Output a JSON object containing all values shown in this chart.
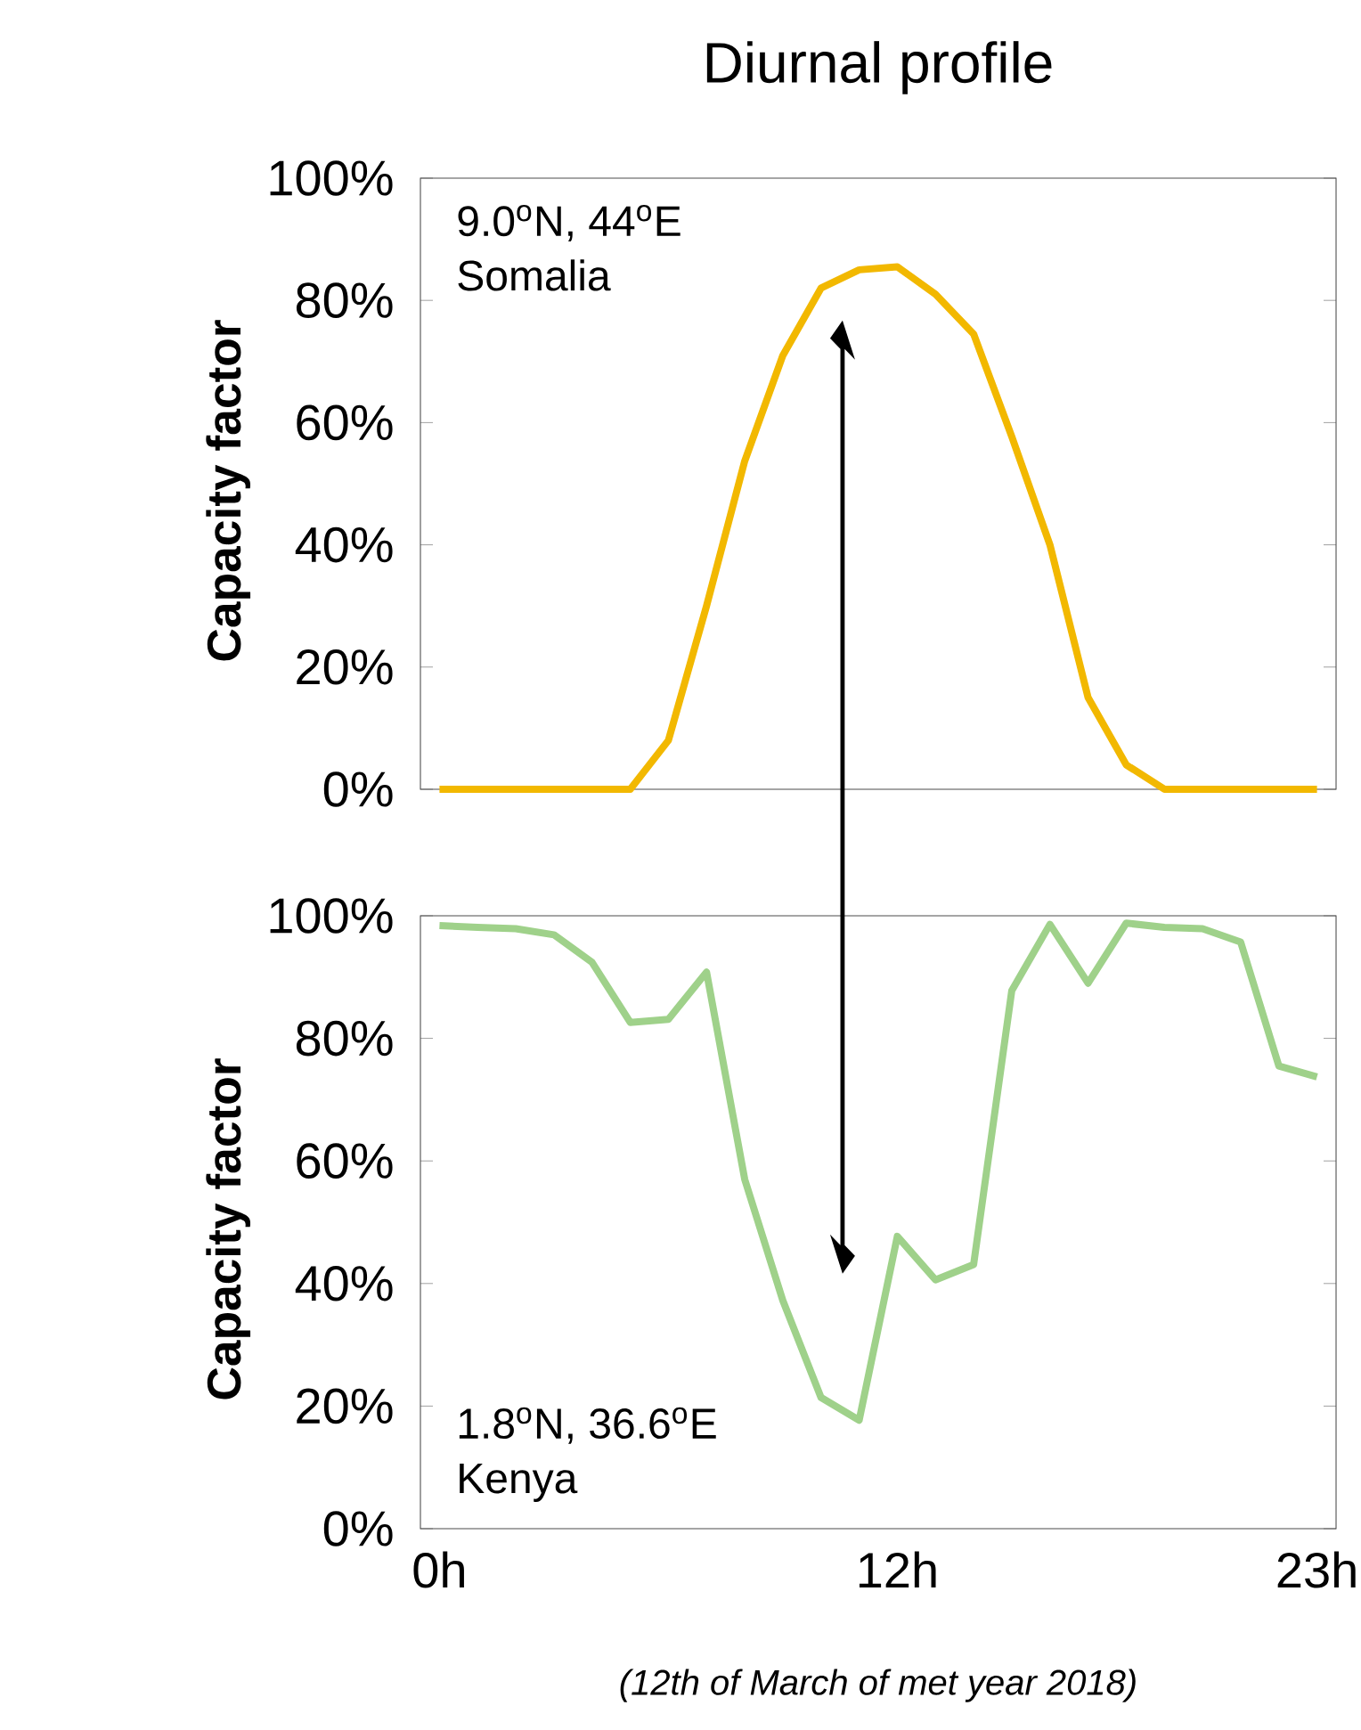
{
  "chart_data": [
    {
      "type": "line",
      "title": "Diurnal profile",
      "ylabel": "Capacity factor",
      "tick_labels": "y",
      "annotations": [
        "9.0$^{o}$N, 44$^{o}$E",
        "Somalia"
      ],
      "x": [
        0,
        1,
        2,
        3,
        4,
        5,
        6,
        7,
        8,
        9,
        10,
        11,
        12,
        13,
        14,
        15,
        16,
        17,
        18,
        19,
        20,
        21,
        22,
        23
      ],
      "series": [
        {
          "color": "#f2b800",
          "values": [
            0,
            0,
            0,
            0,
            0,
            0,
            8,
            30,
            53.7,
            71,
            82,
            85,
            85.5,
            81,
            74.5,
            57.7,
            40,
            15,
            4,
            0,
            0,
            0,
            0,
            0
          ]
        }
      ],
      "xlim": [
        -0.5,
        23.5
      ],
      "ylim": [
        0,
        100
      ],
      "yticks": [
        {
          "value": 0,
          "label": "0%"
        },
        {
          "value": 20,
          "label": "20%"
        },
        {
          "value": 40,
          "label": "40%"
        },
        {
          "value": 60,
          "label": "60%"
        },
        {
          "value": 80,
          "label": "80%"
        },
        {
          "value": 100,
          "label": "100%"
        }
      ]
    },
    {
      "type": "line",
      "ylabel": "Capacity factor",
      "annotations": [
        "1.8$^{o}$N, 36.6$^{o}$E",
        "Kenya",
        "(12th of March of met year 2018)"
      ],
      "x": [
        0,
        1,
        2,
        3,
        4,
        5,
        6,
        7,
        8,
        9,
        10,
        11,
        12,
        13,
        14,
        15,
        16,
        17,
        18,
        19,
        20,
        21,
        22,
        23
      ],
      "series": [
        {
          "color": "#9fd18a",
          "values": [
            98.4,
            98.1,
            97.9,
            96.9,
            92.4,
            82.6,
            83.1,
            90.8,
            57,
            37.2,
            21.4,
            17.7,
            47.7,
            40.6,
            43.1,
            87.8,
            98.6,
            89,
            98.8,
            98.1,
            97.9,
            95.7,
            75.5,
            73.7
          ]
        }
      ],
      "xlim": [
        -0.5,
        23.5
      ],
      "ylim": [
        0,
        100
      ],
      "xticks": [
        {
          "value": 0,
          "label": "0h"
        },
        {
          "value": 12,
          "label": "12h"
        },
        {
          "value": 23,
          "label": "23h"
        }
      ],
      "yticks": [
        {
          "value": 0,
          "label": "0%"
        },
        {
          "value": 20,
          "label": "20%"
        },
        {
          "value": 40,
          "label": "40%"
        },
        {
          "value": 60,
          "label": "60%"
        },
        {
          "value": 80,
          "label": "80%"
        },
        {
          "value": 100,
          "label": "100%"
        }
      ]
    }
  ]
}
